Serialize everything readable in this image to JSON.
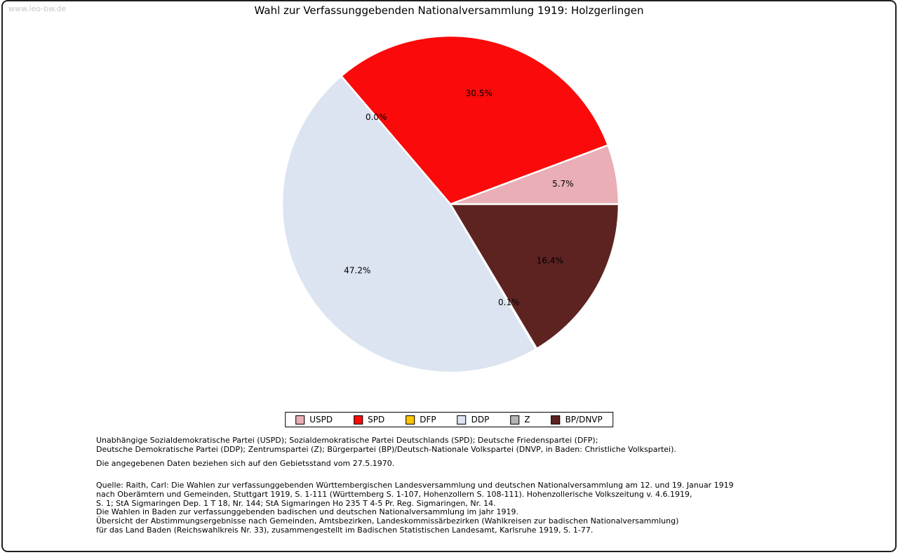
{
  "page": {
    "watermark": "www.leo-bw.de"
  },
  "chart_data": {
    "type": "pie",
    "title": "Wahl zur Verfassunggebenden Nationalversammlung 1919: Holzgerlingen",
    "labels": [
      "USPD",
      "SPD",
      "DFP",
      "DDP",
      "Z",
      "BP/DNVP"
    ],
    "values": [
      5.7,
      30.5,
      0.0,
      47.2,
      0.1,
      16.4
    ],
    "slices": [
      {
        "label": "USPD",
        "value": 5.7,
        "value_label": "5.7%",
        "color": "#e9aeb6"
      },
      {
        "label": "SPD",
        "value": 30.5,
        "value_label": "30.5%",
        "color": "#fa0a0a"
      },
      {
        "label": "DFP",
        "value": 0.0,
        "value_label": "0.0%",
        "color": "#fdc501"
      },
      {
        "label": "DDP",
        "value": 47.2,
        "value_label": "47.2%",
        "color": "#dbe4f0"
      },
      {
        "label": "Z",
        "value": 0.1,
        "value_label": "0.1%",
        "color": "#b4b4b4"
      },
      {
        "label": "BP/DNVP",
        "value": 16.4,
        "value_label": "16.4%",
        "color": "#5d2321"
      }
    ],
    "start_angle_deg": 0,
    "direction": "counterclockwise",
    "legend_position": "bottom",
    "stroke_color": "#ffffff"
  },
  "footer": {
    "party_lines": [
      "Unabhängige Sozialdemokratische Partei (USPD); Sozialdemokratische Partei Deutschlands (SPD); Deutsche Friedenspartei (DFP);",
      "Deutsche Demokratische Partei (DDP); Zentrumspartei (Z); Bürgerpartei (BP)/Deutsch-Nationale Volkspartei (DNVP, in Baden: Christliche Volkspartei)."
    ],
    "note": "Die angegebenen Daten beziehen sich auf den Gebietsstand vom 27.5.1970.",
    "source_lines": [
      "Quelle: Raith, Carl: Die Wahlen zur verfassunggebenden Württembergischen Landesversammlung und deutschen Nationalversammlung am 12. und 19. Januar 1919",
      "nach Oberämtern und Gemeinden, Stuttgart 1919, S. 1-111 (Württemberg S. 1-107, Hohenzollern S. 108-111). Hohenzollerische Volkszeitung v. 4.6.1919,",
      "S. 1; StA Sigmaringen Dep. 1 T 18, Nr. 144; StA Sigmaringen Ho 235 T 4-5 Pr. Reg. Sigmaringen, Nr. 14.",
      "Die Wahlen in Baden zur verfassunggebenden badischen und deutschen Nationalversammlung im jahr 1919.",
      "Übersicht der Abstimmungsergebnisse nach Gemeinden, Amtsbezirken, Landeskommissärbezirken (Wahlkreisen zur badischen Nationalversammlung)",
      "für das Land Baden (Reichswahlkreis Nr. 33), zusammengestellt im Badischen Statistischen Landesamt, Karlsruhe 1919, S. 1-77."
    ]
  }
}
